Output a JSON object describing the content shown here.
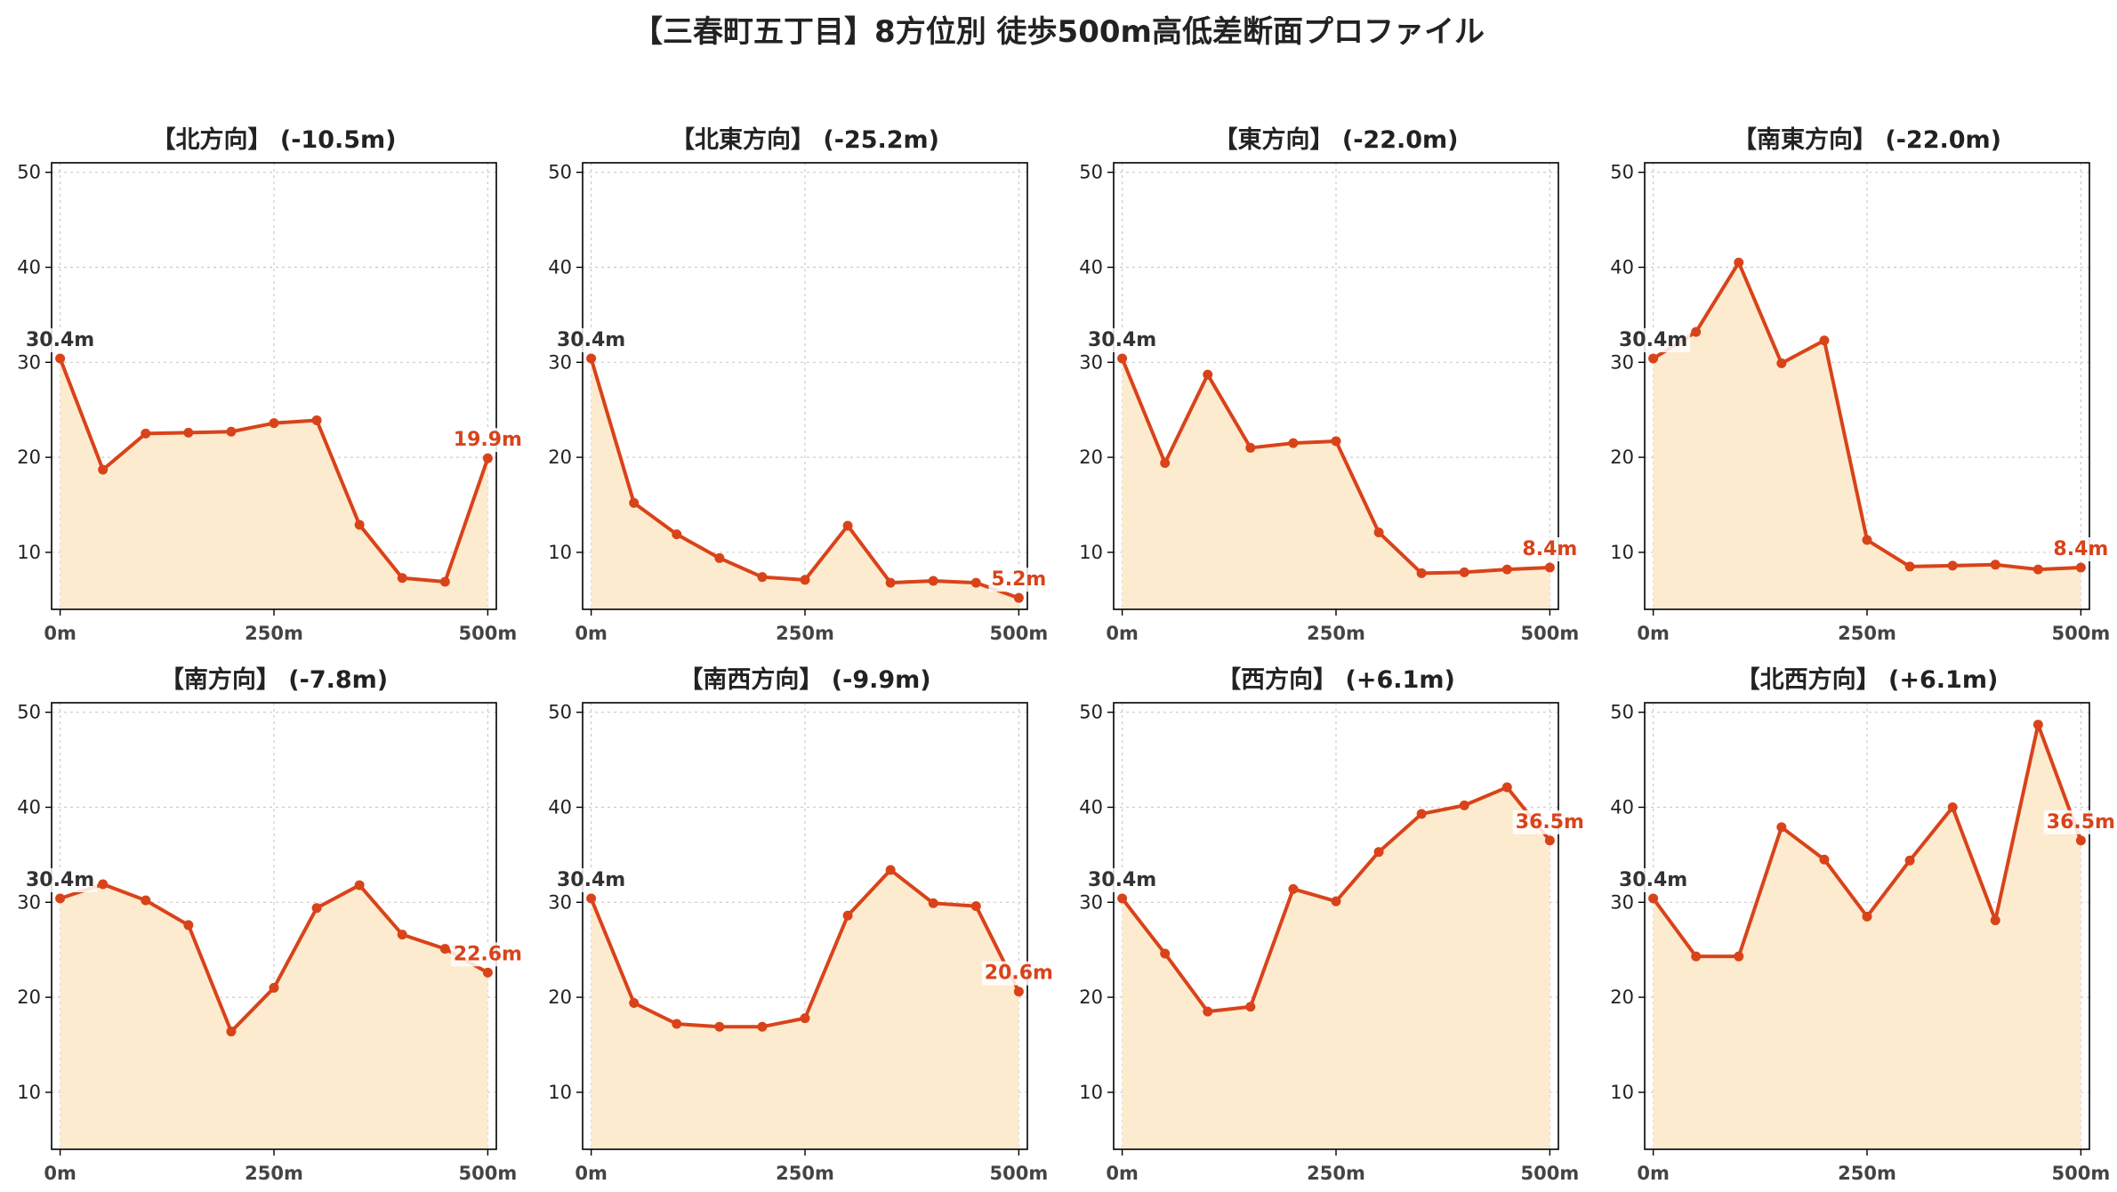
{
  "title": "【三春町五丁目】8方位別 徒歩500m高低差断面プロファイル",
  "colors": {
    "line": "#d9431a",
    "fill": "#fdebcf",
    "label_start": "#333333",
    "label_end": "#d9431a"
  },
  "chart_data": [
    {
      "type": "line",
      "title": "【北方向】 (-10.5m)",
      "x": [
        0,
        50,
        100,
        150,
        200,
        250,
        300,
        350,
        400,
        450,
        500
      ],
      "y": [
        30.4,
        18.7,
        22.5,
        22.6,
        22.7,
        23.6,
        23.9,
        12.9,
        7.3,
        6.9,
        19.9
      ],
      "start_label": "30.4m",
      "end_label": "19.9m",
      "xticks": [
        0,
        250,
        500
      ],
      "xtick_labels": [
        "0m",
        "250m",
        "500m"
      ],
      "yticks": [
        10,
        20,
        30,
        40,
        50
      ],
      "ylim": [
        4,
        51
      ],
      "xlim": [
        -10,
        510
      ],
      "grid": true
    },
    {
      "type": "line",
      "title": "【北東方向】 (-25.2m)",
      "x": [
        0,
        50,
        100,
        150,
        200,
        250,
        300,
        350,
        400,
        450,
        500
      ],
      "y": [
        30.4,
        15.2,
        11.9,
        9.4,
        7.4,
        7.1,
        12.8,
        6.8,
        7.0,
        6.8,
        5.2
      ],
      "start_label": "30.4m",
      "end_label": "5.2m",
      "xticks": [
        0,
        250,
        500
      ],
      "xtick_labels": [
        "0m",
        "250m",
        "500m"
      ],
      "yticks": [
        10,
        20,
        30,
        40,
        50
      ],
      "ylim": [
        4,
        51
      ],
      "xlim": [
        -10,
        510
      ],
      "grid": true
    },
    {
      "type": "line",
      "title": "【東方向】 (-22.0m)",
      "x": [
        0,
        50,
        100,
        150,
        200,
        250,
        300,
        350,
        400,
        450,
        500
      ],
      "y": [
        30.4,
        19.4,
        28.7,
        21.0,
        21.5,
        21.7,
        12.1,
        7.8,
        7.9,
        8.2,
        8.4
      ],
      "start_label": "30.4m",
      "end_label": "8.4m",
      "xticks": [
        0,
        250,
        500
      ],
      "xtick_labels": [
        "0m",
        "250m",
        "500m"
      ],
      "yticks": [
        10,
        20,
        30,
        40,
        50
      ],
      "ylim": [
        4,
        51
      ],
      "xlim": [
        -10,
        510
      ],
      "grid": true
    },
    {
      "type": "line",
      "title": "【南東方向】 (-22.0m)",
      "x": [
        0,
        50,
        100,
        150,
        200,
        250,
        300,
        350,
        400,
        450,
        500
      ],
      "y": [
        30.4,
        33.2,
        40.5,
        29.9,
        32.3,
        11.3,
        8.5,
        8.6,
        8.7,
        8.2,
        8.4
      ],
      "start_label": "30.4m",
      "end_label": "8.4m",
      "xticks": [
        0,
        250,
        500
      ],
      "xtick_labels": [
        "0m",
        "250m",
        "500m"
      ],
      "yticks": [
        10,
        20,
        30,
        40,
        50
      ],
      "ylim": [
        4,
        51
      ],
      "xlim": [
        -10,
        510
      ],
      "grid": true
    },
    {
      "type": "line",
      "title": "【南方向】 (-7.8m)",
      "x": [
        0,
        50,
        100,
        150,
        200,
        250,
        300,
        350,
        400,
        450,
        500
      ],
      "y": [
        30.4,
        31.9,
        30.2,
        27.6,
        16.4,
        21.0,
        29.4,
        31.8,
        26.6,
        25.1,
        22.6
      ],
      "start_label": "30.4m",
      "end_label": "22.6m",
      "xticks": [
        0,
        250,
        500
      ],
      "xtick_labels": [
        "0m",
        "250m",
        "500m"
      ],
      "yticks": [
        10,
        20,
        30,
        40,
        50
      ],
      "ylim": [
        4,
        51
      ],
      "xlim": [
        -10,
        510
      ],
      "grid": true
    },
    {
      "type": "line",
      "title": "【南西方向】 (-9.9m)",
      "x": [
        0,
        50,
        100,
        150,
        200,
        250,
        300,
        350,
        400,
        450,
        500
      ],
      "y": [
        30.4,
        19.4,
        17.2,
        16.9,
        16.9,
        17.8,
        28.6,
        33.4,
        29.9,
        29.6,
        20.6
      ],
      "start_label": "30.4m",
      "end_label": "20.6m",
      "xticks": [
        0,
        250,
        500
      ],
      "xtick_labels": [
        "0m",
        "250m",
        "500m"
      ],
      "yticks": [
        10,
        20,
        30,
        40,
        50
      ],
      "ylim": [
        4,
        51
      ],
      "xlim": [
        -10,
        510
      ],
      "grid": true
    },
    {
      "type": "line",
      "title": "【西方向】 (+6.1m)",
      "x": [
        0,
        50,
        100,
        150,
        200,
        250,
        300,
        350,
        400,
        450,
        500
      ],
      "y": [
        30.4,
        24.6,
        18.5,
        19.0,
        31.4,
        30.1,
        35.3,
        39.3,
        40.2,
        42.1,
        36.5
      ],
      "start_label": "30.4m",
      "end_label": "36.5m",
      "xticks": [
        0,
        250,
        500
      ],
      "xtick_labels": [
        "0m",
        "250m",
        "500m"
      ],
      "yticks": [
        10,
        20,
        30,
        40,
        50
      ],
      "ylim": [
        4,
        51
      ],
      "xlim": [
        -10,
        510
      ],
      "grid": true
    },
    {
      "type": "line",
      "title": "【北西方向】 (+6.1m)",
      "x": [
        0,
        50,
        100,
        150,
        200,
        250,
        300,
        350,
        400,
        450,
        500
      ],
      "y": [
        30.4,
        24.3,
        24.3,
        37.9,
        34.5,
        28.5,
        34.4,
        40.0,
        28.1,
        48.7,
        36.5
      ],
      "start_label": "30.4m",
      "end_label": "36.5m",
      "xticks": [
        0,
        250,
        500
      ],
      "xtick_labels": [
        "0m",
        "250m",
        "500m"
      ],
      "yticks": [
        10,
        20,
        30,
        40,
        50
      ],
      "ylim": [
        4,
        51
      ],
      "xlim": [
        -10,
        510
      ],
      "grid": true
    }
  ]
}
